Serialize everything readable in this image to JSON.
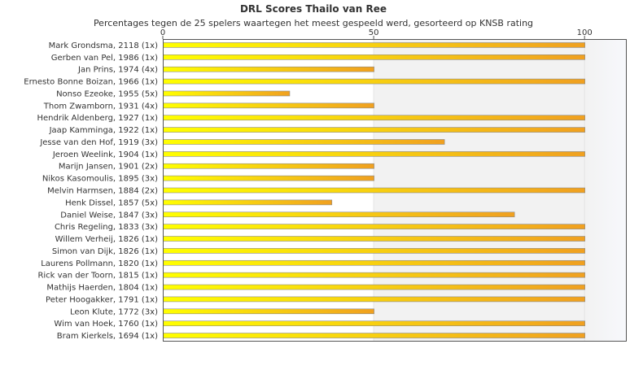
{
  "chart_data": {
    "type": "bar",
    "orientation": "horizontal",
    "title": "DRL Scores Thailo van Ree",
    "subtitle": "Percentages tegen de 25 spelers waartegen het meest gespeeld werd, gesorteerd op KNSB rating",
    "xlim": [
      0,
      110
    ],
    "ticks": [
      "0",
      "50",
      "100"
    ],
    "categories": [
      "Mark Grondsma, 2118 (1x)",
      "Gerben van Pel, 1986 (1x)",
      "Jan Prins, 1974 (4x)",
      "Ernesto Bonne Boizan, 1966 (1x)",
      "Nonso Ezeoke, 1955 (5x)",
      "Thom Zwamborn, 1931 (4x)",
      "Hendrik Aldenberg, 1927 (1x)",
      "Jaap Kamminga, 1922 (1x)",
      "Jesse van den Hof, 1919 (3x)",
      "Jeroen Weelink, 1904 (1x)",
      "Marijn Jansen, 1901 (2x)",
      "Nikos Kasomoulis, 1895 (3x)",
      "Melvin Harmsen, 1884 (2x)",
      "Henk Dissel, 1857 (5x)",
      "Daniel Weise, 1847 (3x)",
      "Chris Regeling, 1833 (3x)",
      "Willem Verheij, 1826 (1x)",
      "Simon van Dijk, 1826 (1x)",
      "Laurens Pollmann, 1820 (1x)",
      "Rick van der Toorn, 1815 (1x)",
      "Mathijs Haerden, 1804 (1x)",
      "Peter Hoogakker, 1791 (1x)",
      "Leon Klute, 1772 (3x)",
      "Wim van Hoek, 1760 (1x)",
      "Bram Kierkels, 1694 (1x)"
    ],
    "values": [
      100,
      100,
      50,
      100,
      30,
      50,
      100,
      100,
      66.7,
      100,
      50,
      50,
      100,
      40,
      83.3,
      100,
      100,
      100,
      100,
      100,
      100,
      100,
      50,
      100,
      100
    ],
    "colors": {
      "bar_left": "#ffff00",
      "bar_right": "#f0a020",
      "bar_edge": "#8a8a8a",
      "band_light": "#ffffff",
      "band_gray": "#f2f2f2",
      "band_fade": "#f7f8fc",
      "axis": "#555555"
    }
  }
}
